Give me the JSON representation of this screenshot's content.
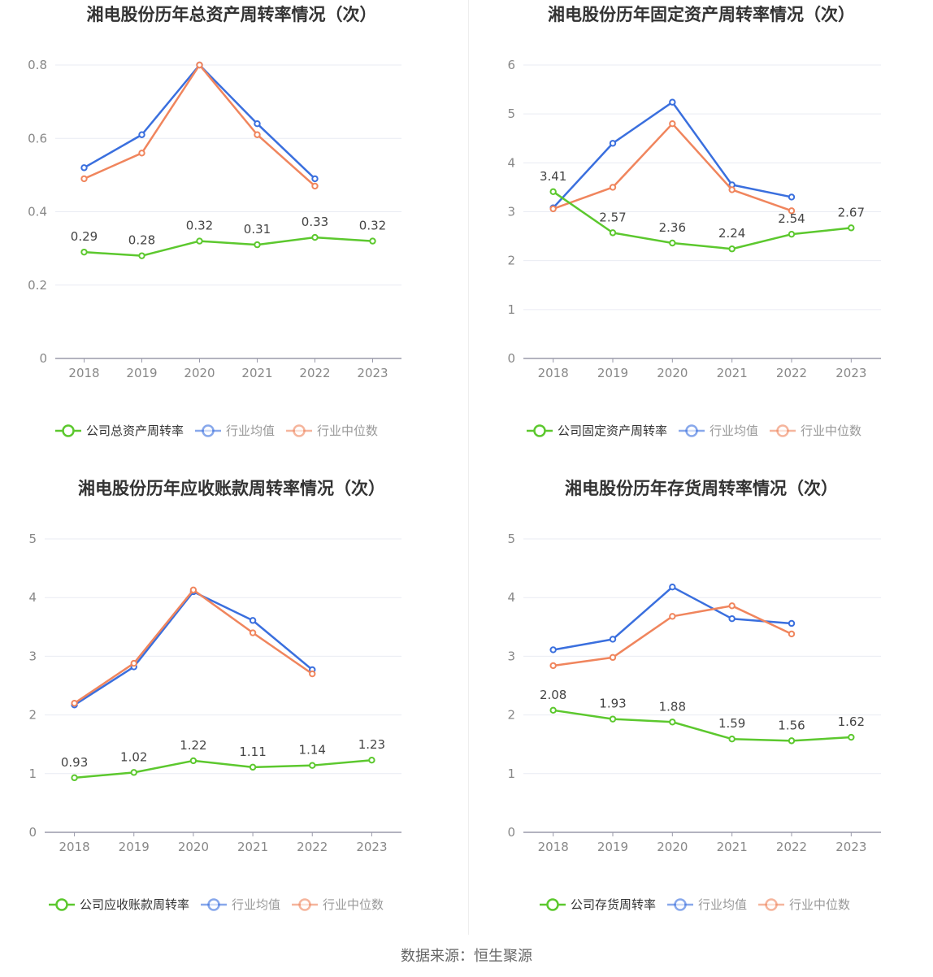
{
  "source_label": "数据来源：恒生聚源",
  "colors": {
    "company": "#5cc82e",
    "avg": "#3a6fde",
    "median": "#f0855d",
    "grid": "#e9ebf3",
    "axis": "#9a9aaa"
  },
  "chart_data": [
    {
      "type": "line",
      "title": "湘电股份历年总资产周转率情况（次）",
      "categories": [
        "2018",
        "2019",
        "2020",
        "2021",
        "2022",
        "2023"
      ],
      "ylim": [
        0,
        0.8
      ],
      "yticks": [
        "0",
        "0.2",
        "0.4",
        "0.6",
        "0.8"
      ],
      "series": [
        {
          "name": "公司总资产周转率",
          "values": [
            0.29,
            0.28,
            0.32,
            0.31,
            0.33,
            0.32
          ],
          "labels": [
            "0.29",
            "0.28",
            "0.32",
            "0.31",
            "0.33",
            "0.32"
          ]
        },
        {
          "name": "行业均值",
          "values": [
            0.52,
            0.61,
            0.8,
            0.64,
            0.49,
            null
          ]
        },
        {
          "name": "行业中位数",
          "values": [
            0.49,
            0.56,
            0.8,
            0.61,
            0.47,
            null
          ]
        }
      ]
    },
    {
      "type": "line",
      "title": "湘电股份历年固定资产周转率情况（次）",
      "categories": [
        "2018",
        "2019",
        "2020",
        "2021",
        "2022",
        "2023"
      ],
      "ylim": [
        0,
        6
      ],
      "yticks": [
        "0",
        "1",
        "2",
        "3",
        "4",
        "5",
        "6"
      ],
      "series": [
        {
          "name": "公司固定资产周转率",
          "values": [
            3.41,
            2.57,
            2.36,
            2.24,
            2.54,
            2.67
          ],
          "labels": [
            "3.41",
            "2.57",
            "2.36",
            "2.24",
            "2.54",
            "2.67"
          ]
        },
        {
          "name": "行业均值",
          "values": [
            3.08,
            4.4,
            5.24,
            3.55,
            3.3,
            null
          ]
        },
        {
          "name": "行业中位数",
          "values": [
            3.06,
            3.5,
            4.8,
            3.45,
            3.02,
            null
          ]
        }
      ]
    },
    {
      "type": "line",
      "title": "湘电股份历年应收账款周转率情况（次）",
      "categories": [
        "2018",
        "2019",
        "2020",
        "2021",
        "2022",
        "2023"
      ],
      "ylim": [
        0,
        5
      ],
      "yticks": [
        "0",
        "1",
        "2",
        "3",
        "4",
        "5"
      ],
      "series": [
        {
          "name": "公司应收账款周转率",
          "values": [
            0.93,
            1.02,
            1.22,
            1.11,
            1.14,
            1.23
          ],
          "labels": [
            "0.93",
            "1.02",
            "1.22",
            "1.11",
            "1.14",
            "1.23"
          ]
        },
        {
          "name": "行业均值",
          "values": [
            2.17,
            2.82,
            4.1,
            3.61,
            2.77,
            null
          ]
        },
        {
          "name": "行业中位数",
          "values": [
            2.2,
            2.88,
            4.13,
            3.4,
            2.7,
            null
          ]
        }
      ]
    },
    {
      "type": "line",
      "title": "湘电股份历年存货周转率情况（次）",
      "categories": [
        "2018",
        "2019",
        "2020",
        "2021",
        "2022",
        "2023"
      ],
      "ylim": [
        0,
        5
      ],
      "yticks": [
        "0",
        "1",
        "2",
        "3",
        "4",
        "5"
      ],
      "series": [
        {
          "name": "公司存货周转率",
          "values": [
            2.08,
            1.93,
            1.88,
            1.59,
            1.56,
            1.62
          ],
          "labels": [
            "2.08",
            "1.93",
            "1.88",
            "1.59",
            "1.56",
            "1.62"
          ]
        },
        {
          "name": "行业均值",
          "values": [
            3.11,
            3.29,
            4.18,
            3.64,
            3.56,
            null
          ]
        },
        {
          "name": "行业中位数",
          "values": [
            2.84,
            2.98,
            3.68,
            3.86,
            3.38,
            null
          ]
        }
      ]
    }
  ]
}
